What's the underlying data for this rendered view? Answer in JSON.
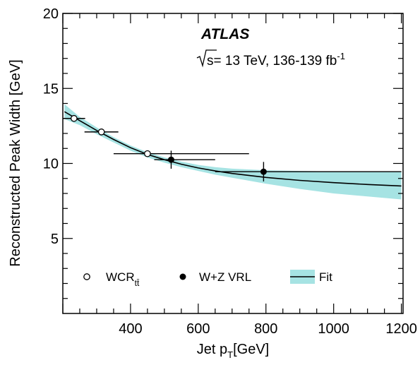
{
  "chart_data": {
    "type": "scatter",
    "experiment": "ATLAS",
    "energy_label": "s= 13 TeV, 136-139 fb",
    "energy_label_sup": "-1",
    "xlabel": "Jet p",
    "xlabel_sub": "T",
    "xlabel_unit": "[GeV]",
    "ylabel": "Reconstructed Peak Width [GeV]",
    "xlim": [
      200,
      1205
    ],
    "ylim": [
      0,
      20
    ],
    "xticks": [
      400,
      600,
      800,
      1000,
      1200
    ],
    "yticks": [
      5,
      10,
      15,
      20
    ],
    "legend_placement": "bottom-left",
    "colors": {
      "band": "#a6e3e3",
      "line": "#000000",
      "marker": "#000000"
    },
    "series": [
      {
        "name": "WCR",
        "name_sub": "tt̄",
        "marker": "open-circle",
        "points": [
          {
            "x": 233,
            "y": 13.0,
            "xerr": [
              33,
              33
            ],
            "yerr": 0.15
          },
          {
            "x": 314,
            "y": 12.1,
            "xerr": [
              50,
              50
            ],
            "yerr": 0.15
          },
          {
            "x": 450,
            "y": 10.65,
            "xerr": [
              100,
              300
            ],
            "yerr": 0.15
          }
        ]
      },
      {
        "name": "W+Z VRL",
        "marker": "filled-circle",
        "points": [
          {
            "x": 520,
            "y": 10.25,
            "xerr": [
              50,
              130
            ],
            "yerr": 0.6
          },
          {
            "x": 793,
            "y": 9.45,
            "xerr": [
              143,
              407
            ],
            "yerr": 0.65
          }
        ]
      },
      {
        "name": "Fit",
        "type": "line-band",
        "x": [
          205,
          250,
          300,
          350,
          400,
          450,
          500,
          550,
          600,
          650,
          700,
          800,
          900,
          1000,
          1100,
          1200
        ],
        "y": [
          13.45,
          12.85,
          12.2,
          11.6,
          11.05,
          10.6,
          10.25,
          9.95,
          9.7,
          9.5,
          9.33,
          9.07,
          8.87,
          8.72,
          8.6,
          8.5
        ],
        "band_upper": [
          13.95,
          13.1,
          12.4,
          11.75,
          11.2,
          10.75,
          10.4,
          10.12,
          9.9,
          9.75,
          9.65,
          9.55,
          9.5,
          9.47,
          9.45,
          9.45
        ],
        "band_lower": [
          12.95,
          12.55,
          11.95,
          11.4,
          10.85,
          10.4,
          10.05,
          9.75,
          9.5,
          9.25,
          9.05,
          8.65,
          8.3,
          8.0,
          7.8,
          7.6
        ]
      }
    ]
  }
}
